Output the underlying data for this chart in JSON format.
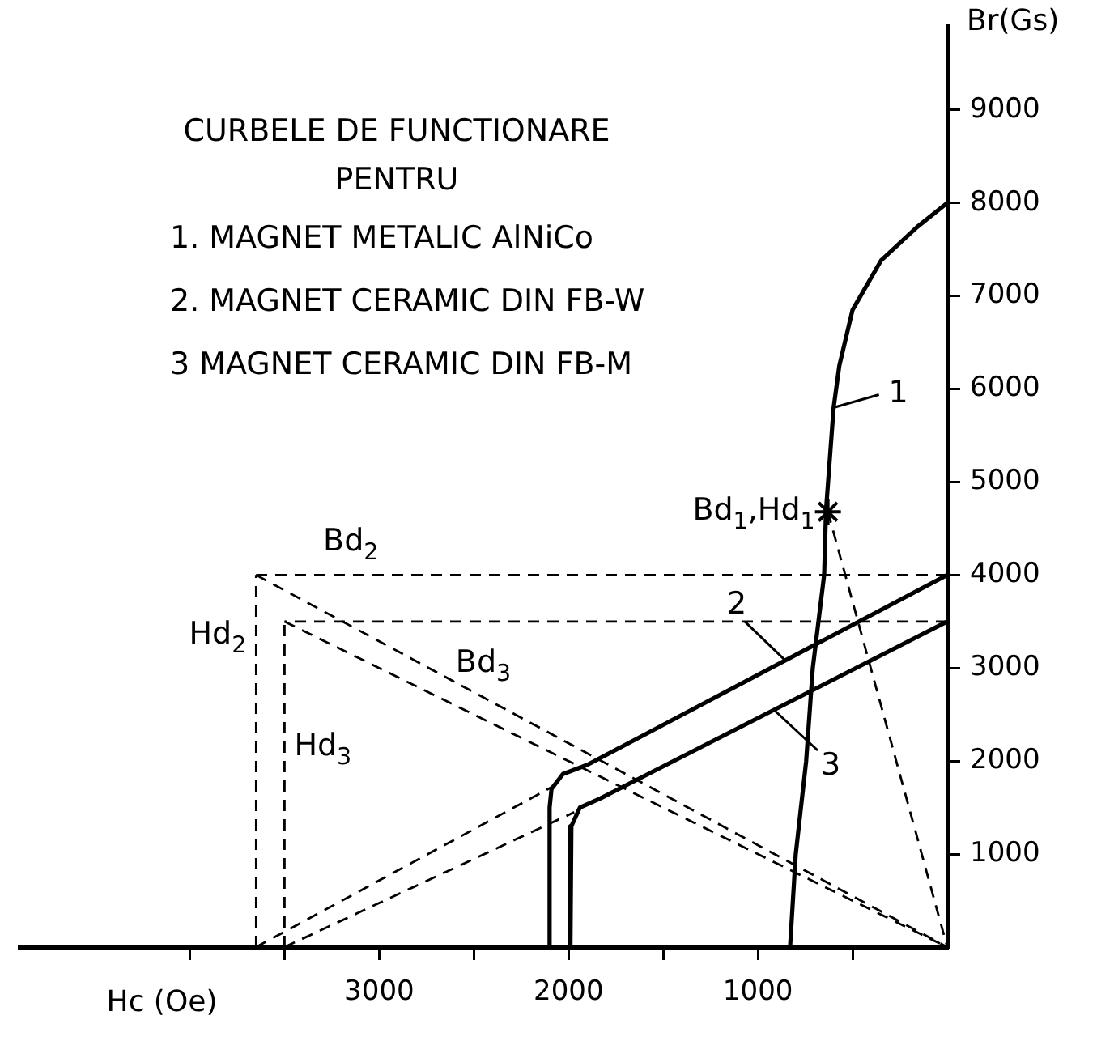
{
  "chart_data": {
    "type": "line",
    "title": "CURBELE DE FUNCTIONARE",
    "subtitle": "PENTRU",
    "xlabel": "Hc (Oe)",
    "ylabel": "Br(Gs)",
    "annotations": [
      "1. MAGNET METALIC AlNiCo",
      "2. MAGNET CERAMIC DIN FB-W",
      "3 MAGNET CERAMIC DIN FB-M",
      {
        "text": "Bd$_{2}$",
        "x": 3150,
        "y": 4000
      },
      {
        "text": "Hd$_{2}$",
        "x": 3650,
        "y": 3350
      },
      {
        "text": "Bd$_{3}$",
        "x": 2450,
        "y": 3500
      },
      {
        "text": "Hd$_{3}$",
        "x": 3500,
        "y": 2150
      },
      {
        "text": "Bd$_{1}$,Hd$_{1}$",
        "x": 630,
        "y": 4680
      }
    ],
    "xlim": [
      4900,
      0
    ],
    "ylim": [
      0,
      9900
    ],
    "xticks": [
      {
        "value": 500,
        "label": null
      },
      1000,
      {
        "value": 1500,
        "label": null
      },
      2000,
      {
        "value": 2500,
        "label": null
      },
      3000,
      {
        "value": 3500,
        "label": null
      },
      {
        "value": 4000,
        "label": null
      }
    ],
    "yticks": [
      1000,
      2000,
      3000,
      4000,
      5000,
      6000,
      7000,
      8000,
      9000
    ],
    "grid": false,
    "marker": "none",
    "line_style": "solid",
    "series": [
      {
        "name": "1",
        "color": "#000000",
        "x": [
          0,
          160,
          350,
          500,
          570,
          600,
          640,
          650,
          710,
          745,
          800,
          830
        ],
        "values": [
          8000,
          7740,
          7380,
          6850,
          6250,
          5800,
          4700,
          4000,
          3000,
          2000,
          1000,
          0
        ]
      },
      {
        "name": "2",
        "color": "#000000",
        "x": [
          0,
          1900,
          2030,
          2090,
          2100,
          2100
        ],
        "values": [
          4000,
          1960,
          1860,
          1700,
          1500,
          0
        ]
      },
      {
        "name": "3",
        "color": "#000000",
        "x": [
          0,
          1830,
          1940,
          1985,
          1990,
          1990
        ],
        "values": [
          3500,
          1600,
          1500,
          1300,
          1100,
          0
        ]
      },
      {
        "color": "#000000",
        "line_style": "dashed",
        "x": [
          0,
          3650
        ],
        "values": [
          4000,
          4000
        ]
      },
      {
        "color": "#000000",
        "line_style": "dashed",
        "x": [
          3650,
          3650
        ],
        "values": [
          0,
          4000
        ]
      },
      {
        "color": "#000000",
        "line_style": "dashed",
        "x": [
          3650,
          0
        ],
        "values": [
          4000,
          0
        ]
      },
      {
        "color": "#000000",
        "line_style": "dashed",
        "x": [
          3650,
          2080
        ],
        "values": [
          0,
          1730
        ]
      },
      {
        "color": "#000000",
        "line_style": "dashed",
        "x": [
          0,
          3500
        ],
        "values": [
          3500,
          3500
        ]
      },
      {
        "color": "#000000",
        "line_style": "dashed",
        "x": [
          3500,
          3500
        ],
        "values": [
          0,
          3500
        ]
      },
      {
        "color": "#000000",
        "line_style": "dashed",
        "x": [
          3500,
          0
        ],
        "values": [
          3500,
          0
        ]
      },
      {
        "color": "#000000",
        "line_style": "dashed",
        "x": [
          3500,
          1970
        ],
        "values": [
          0,
          1450
        ]
      },
      {
        "color": "#000000",
        "line_style": "dashed",
        "x": [
          630,
          0
        ],
        "values": [
          4680,
          0
        ]
      },
      {
        "type": "scatter",
        "color": "#000000",
        "marker": "cross",
        "x": [
          630
        ],
        "values": [
          4680
        ]
      }
    ]
  }
}
